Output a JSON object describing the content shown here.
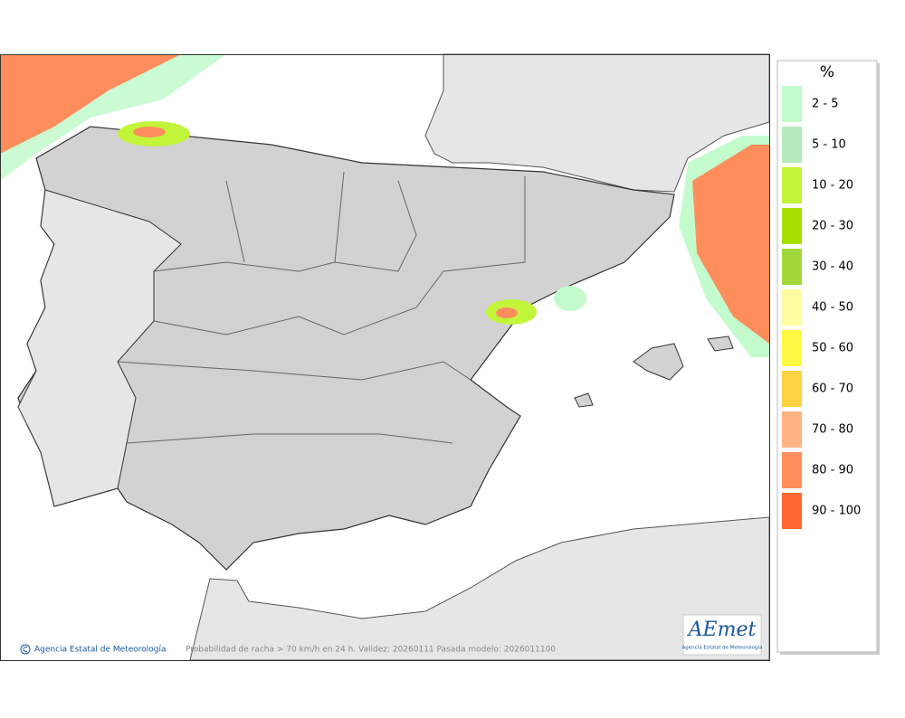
{
  "legend": {
    "title": "%",
    "items": [
      {
        "label": "2 - 5",
        "color": "#c4fbcd"
      },
      {
        "label": "5 - 10",
        "color": "#b6ebbf"
      },
      {
        "label": "10 - 20",
        "color": "#c2f43a"
      },
      {
        "label": "20 - 30",
        "color": "#a6e000"
      },
      {
        "label": "30 - 40",
        "color": "#a2d83c"
      },
      {
        "label": "40 - 50",
        "color": "#fffca0"
      },
      {
        "label": "50 - 60",
        "color": "#fff842"
      },
      {
        "label": "60 - 70",
        "color": "#ffd242"
      },
      {
        "label": "70 - 80",
        "color": "#ffb284"
      },
      {
        "label": "80 - 90",
        "color": "#ff8e5c"
      },
      {
        "label": "90 - 100",
        "color": "#ff6632"
      }
    ]
  },
  "credit": "Agencia Estatal de Meteorología",
  "caption": "Probabilidad de racha > 70 km/h en 24 h. Validez: 20260111 Pasada modelo: 2026011100",
  "logo": {
    "name": "AEmet",
    "subtitle": "Agencia Estatal de Meteorología"
  }
}
